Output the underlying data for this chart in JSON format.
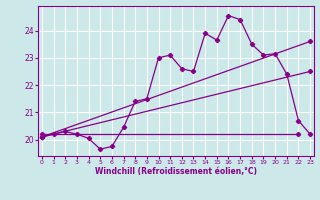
{
  "xlabel": "Windchill (Refroidissement éolien,°C)",
  "bg_color": "#cce8e8",
  "grid_color": "#ffffff",
  "line_color": "#880088",
  "x_ticks": [
    0,
    1,
    2,
    3,
    4,
    5,
    6,
    7,
    8,
    9,
    10,
    11,
    12,
    13,
    14,
    15,
    16,
    17,
    18,
    19,
    20,
    21,
    22,
    23
  ],
  "y_ticks": [
    20,
    21,
    22,
    23,
    24
  ],
  "xlim": [
    -0.3,
    23.3
  ],
  "ylim": [
    19.4,
    24.9
  ],
  "series1_x": [
    0,
    1,
    2,
    3,
    4,
    5,
    6,
    7,
    8,
    9,
    10,
    11,
    12,
    13,
    14,
    15,
    16,
    17,
    18,
    19,
    20,
    21,
    22,
    23
  ],
  "series1_y": [
    20.1,
    20.2,
    20.3,
    20.2,
    20.05,
    19.65,
    19.75,
    20.45,
    21.4,
    21.5,
    23.0,
    23.1,
    22.6,
    22.5,
    23.9,
    23.65,
    24.55,
    24.4,
    23.5,
    23.1,
    23.15,
    22.4,
    20.7,
    20.2
  ],
  "series2_x": [
    0,
    23
  ],
  "series2_y": [
    20.1,
    23.6
  ],
  "series3_x": [
    0,
    23
  ],
  "series3_y": [
    20.1,
    22.5
  ],
  "series4_x": [
    0,
    22
  ],
  "series4_y": [
    20.2,
    20.2
  ],
  "marker": "D",
  "markersize": 2.2,
  "linewidth": 0.9
}
